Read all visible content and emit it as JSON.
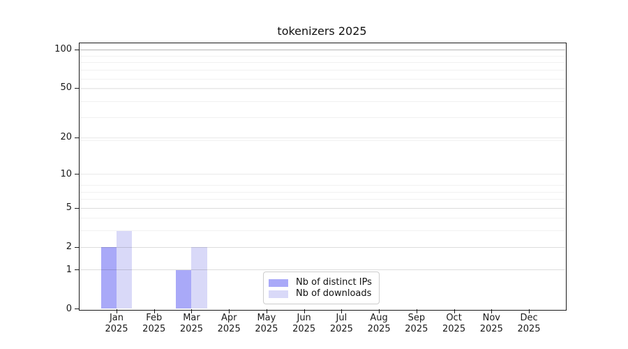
{
  "chart_data": {
    "type": "bar",
    "title": "tokenizers 2025",
    "categories": [
      "Jan",
      "Feb",
      "Mar",
      "Apr",
      "May",
      "Jun",
      "Jul",
      "Aug",
      "Sep",
      "Oct",
      "Nov",
      "Dec"
    ],
    "year_label": "2025",
    "series": [
      {
        "name": "Nb of distinct IPs",
        "color": "#a9a9f8",
        "values": [
          2,
          0,
          1,
          0,
          0,
          0,
          0,
          0,
          0,
          0,
          0,
          0
        ]
      },
      {
        "name": "Nb of downloads",
        "color": "#d9d9f8",
        "values": [
          3,
          0,
          2,
          0,
          0,
          0,
          0,
          0,
          0,
          0,
          0,
          0
        ]
      }
    ],
    "yticks": [
      0,
      1,
      2,
      5,
      10,
      20,
      50,
      100
    ],
    "ytick_labels": [
      "0",
      "1",
      "2",
      "5",
      "10",
      "20",
      "50",
      "100"
    ],
    "yscale": "log10(1+y)",
    "ylim": [
      0,
      114
    ],
    "xlabel": "",
    "ylabel": "",
    "grid": "both",
    "legend_position": "lower center inside",
    "colors": {
      "frame": "#1a1a1a",
      "grid_minor": "rgba(0,0,0,0.055)",
      "grid_major": "rgba(0,0,0,0.085)",
      "grid_top_decade": "rgba(0,0,0,0.22)",
      "legend_border": "#cccccc",
      "text": "#1a1a1a"
    }
  }
}
